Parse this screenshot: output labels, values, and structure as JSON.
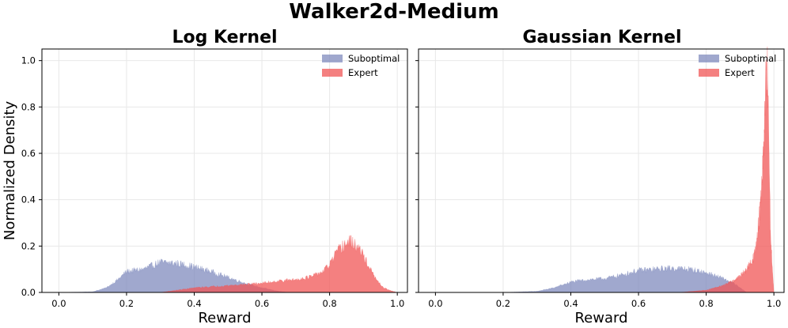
{
  "figure": {
    "suptitle": "Walker2d-Medium"
  },
  "colors": {
    "suboptimal": "#7b86bb",
    "expert": "#f05555",
    "grid": "#e8e8e8"
  },
  "chart_data": [
    {
      "type": "area",
      "title": "Log Kernel",
      "xlabel": "Reward",
      "ylabel": "Normalized Density",
      "xlim": [
        -0.05,
        1.03
      ],
      "ylim": [
        0,
        1.05
      ],
      "xticks": [
        "0.0",
        "0.2",
        "0.4",
        "0.6",
        "0.8",
        "1.0"
      ],
      "yticks": [
        "0.0",
        "0.2",
        "0.4",
        "0.6",
        "0.8",
        "1.0"
      ],
      "grid": true,
      "legend": "top-right",
      "series": [
        {
          "name": "Suboptimal",
          "x": [
            0.0,
            0.1,
            0.14,
            0.17,
            0.2,
            0.25,
            0.3,
            0.35,
            0.4,
            0.45,
            0.5,
            0.55,
            0.6,
            0.65,
            0.68
          ],
          "y": [
            0.0,
            0.003,
            0.02,
            0.05,
            0.09,
            0.1,
            0.13,
            0.125,
            0.11,
            0.09,
            0.065,
            0.04,
            0.02,
            0.005,
            0.0
          ]
        },
        {
          "name": "Expert",
          "x": [
            0.3,
            0.4,
            0.5,
            0.6,
            0.65,
            0.7,
            0.75,
            0.78,
            0.8,
            0.82,
            0.84,
            0.86,
            0.88,
            0.9,
            0.92,
            0.94,
            0.96,
            0.98,
            1.0
          ],
          "y": [
            0.0,
            0.02,
            0.03,
            0.04,
            0.05,
            0.055,
            0.07,
            0.09,
            0.12,
            0.17,
            0.2,
            0.22,
            0.2,
            0.16,
            0.1,
            0.05,
            0.02,
            0.008,
            0.0
          ]
        }
      ]
    },
    {
      "type": "area",
      "title": "Gaussian Kernel",
      "xlabel": "Reward",
      "ylabel": "",
      "xlim": [
        -0.05,
        1.03
      ],
      "ylim": [
        0,
        1.05
      ],
      "xticks": [
        "0.0",
        "0.2",
        "0.4",
        "0.6",
        "0.8",
        "1.0"
      ],
      "yticks": [],
      "grid": true,
      "legend": "top-right",
      "series": [
        {
          "name": "Suboptimal",
          "x": [
            0.2,
            0.3,
            0.35,
            0.4,
            0.45,
            0.5,
            0.55,
            0.6,
            0.65,
            0.7,
            0.75,
            0.8,
            0.85,
            0.88,
            0.9,
            0.92
          ],
          "y": [
            0.0,
            0.005,
            0.02,
            0.045,
            0.055,
            0.06,
            0.075,
            0.095,
            0.1,
            0.105,
            0.1,
            0.085,
            0.06,
            0.04,
            0.02,
            0.0
          ]
        },
        {
          "name": "Expert",
          "x": [
            0.72,
            0.8,
            0.85,
            0.88,
            0.9,
            0.92,
            0.94,
            0.95,
            0.96,
            0.97,
            0.975,
            0.98,
            0.985,
            0.99,
            1.0
          ],
          "y": [
            0.0,
            0.01,
            0.03,
            0.05,
            0.07,
            0.1,
            0.15,
            0.22,
            0.38,
            0.6,
            0.85,
            0.97,
            0.7,
            0.25,
            0.0
          ]
        }
      ]
    }
  ]
}
